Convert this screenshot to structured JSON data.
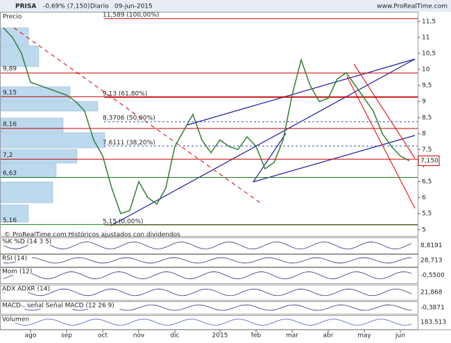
{
  "chart_data": {
    "type": "line",
    "header": {
      "symbol": "PRISA",
      "change": "-0,69% (7,150)",
      "period": "Diario",
      "date": "09-jun-2015",
      "site": "www.ProRealTime.com"
    },
    "panel_label": "Precio",
    "copyright": "© ProRealTime.com  Históricos ajustados con dividendos",
    "series": [
      {
        "name": "PRISA",
        "color": "#2e7d32",
        "values": [
          11.3,
          11.0,
          10.5,
          9.6,
          9.5,
          9.4,
          9.3,
          9.2,
          9.0,
          8.7,
          7.8,
          7.3,
          6.3,
          5.5,
          5.6,
          6.5,
          6.0,
          5.8,
          6.3,
          7.6,
          8.1,
          8.6,
          7.8,
          7.4,
          7.8,
          7.6,
          7.5,
          7.9,
          7.6,
          6.9,
          7.1,
          7.8,
          9.2,
          10.3,
          9.5,
          9.0,
          9.1,
          9.7,
          9.9,
          9.5,
          9.1,
          8.7,
          8.0,
          7.6,
          7.3,
          7.15
        ]
      }
    ],
    "last_price": {
      "value": 7.15,
      "label": "7,150"
    },
    "ylim": [
      4.8,
      11.8
    ],
    "yticks": [
      {
        "value": 5,
        "label": "5"
      },
      {
        "value": 5.5,
        "label": "5,5"
      },
      {
        "value": 6,
        "label": "6"
      },
      {
        "value": 6.5,
        "label": "6,5"
      },
      {
        "value": 7,
        "label": "7"
      },
      {
        "value": 7.5,
        "label": "7,5"
      },
      {
        "value": 8,
        "label": "8"
      },
      {
        "value": 8.5,
        "label": "8,5"
      },
      {
        "value": 9,
        "label": "9"
      },
      {
        "value": 9.5,
        "label": "9,5"
      },
      {
        "value": 10,
        "label": "10"
      },
      {
        "value": 10.5,
        "label": "10,5"
      },
      {
        "value": 11,
        "label": "11"
      },
      {
        "value": 11.5,
        "label": "11,5"
      }
    ],
    "xticks": [
      {
        "value": 3,
        "label": "ago"
      },
      {
        "value": 7,
        "label": "sep"
      },
      {
        "value": 11,
        "label": "oct"
      },
      {
        "value": 15,
        "label": "nov"
      },
      {
        "value": 19,
        "label": "dic"
      },
      {
        "value": 24,
        "label": "2015"
      },
      {
        "value": 28,
        "label": "feb"
      },
      {
        "value": 32,
        "label": "mar"
      },
      {
        "value": 36,
        "label": "abr"
      },
      {
        "value": 40,
        "label": "may"
      },
      {
        "value": 44,
        "label": "jun"
      }
    ],
    "fib_levels": [
      {
        "value": 11.589,
        "label": "11,589 (100,00%)"
      },
      {
        "value": 9.13,
        "label": "9,13 (61,80%)"
      },
      {
        "value": 8.3706,
        "label": "8,3706 (50,00%)"
      },
      {
        "value": 7.6111,
        "label": "7,6111 (38,20%)"
      },
      {
        "value": 5.15,
        "label": "5,15 (0,00%)"
      }
    ],
    "profile_levels": [
      {
        "value": 9.89,
        "label": "9,89"
      },
      {
        "value": 9.15,
        "label": "9,15"
      },
      {
        "value": 8.16,
        "label": "8,16"
      },
      {
        "value": 7.2,
        "label": "7,2"
      },
      {
        "value": 6.63,
        "label": "6,63"
      },
      {
        "value": 5.16,
        "label": "5,16"
      }
    ],
    "indicators": [
      {
        "name": "%K %D (14 3 5)",
        "value": {
          "value": 8.8191,
          "label": "8,8191"
        }
      },
      {
        "name": "RSI (14)",
        "value": {
          "value": 28.713,
          "label": "28,713"
        }
      },
      {
        "name": "Mom (12)",
        "value": {
          "value": -0.55,
          "label": "-0,5500"
        }
      },
      {
        "name": "ADX ADXR (14)",
        "value": {
          "value": 21.868,
          "label": "21,868"
        }
      },
      {
        "name": "MACD-, señal  Señal MACD (12 26 9)",
        "value": {
          "value": -0.3871,
          "label": "-0,3871"
        }
      },
      {
        "name": "Volumen",
        "value": {
          "value": 183513,
          "label": "183.513"
        }
      }
    ]
  }
}
